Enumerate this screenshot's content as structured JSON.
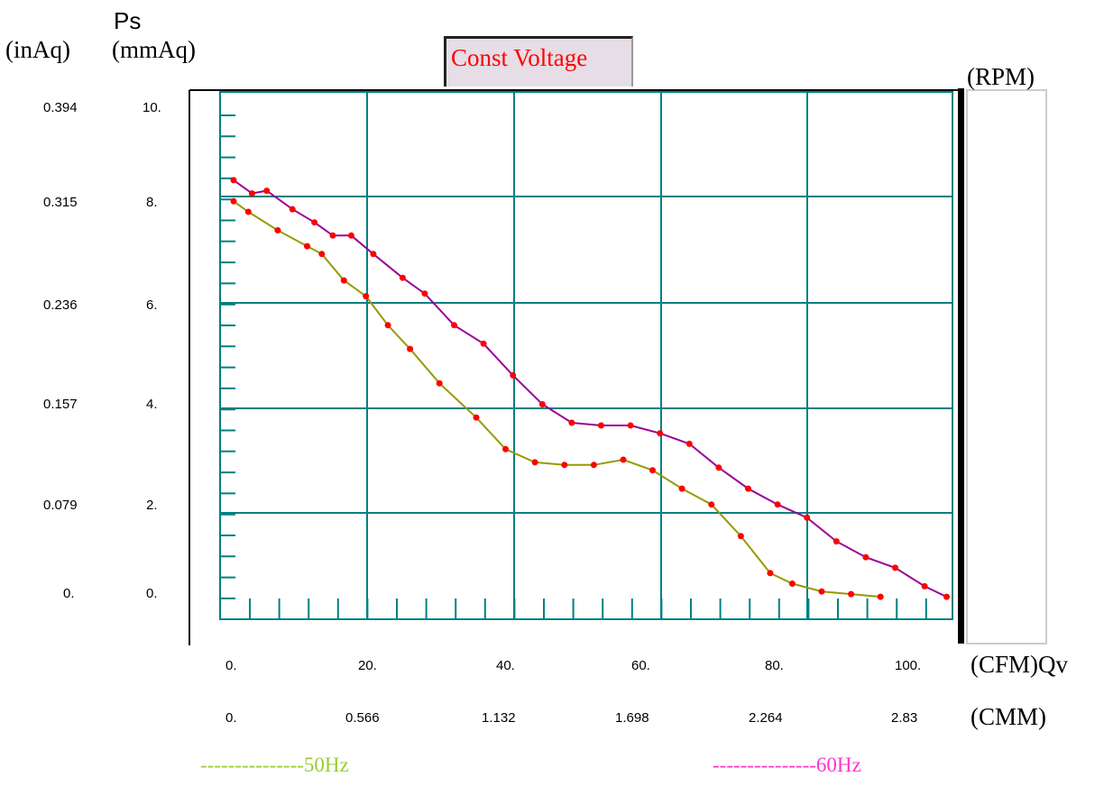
{
  "labels": {
    "ps": "Ps",
    "inaq": "(inAq)",
    "mmaq": "(mmAq)",
    "rpm": "(RPM)",
    "cfm": "(CFM)Qv",
    "cmm": "(CMM)",
    "mode": "Const Voltage",
    "legend_50": "---------------50Hz",
    "legend_60": "---------------60Hz"
  },
  "colors": {
    "grid": "#008080",
    "series_50": "#999900",
    "series_60": "#990099",
    "marker": "#ff0000",
    "legend_50": "#99cc33",
    "legend_60": "#ff33cc"
  },
  "chart_data": {
    "type": "line",
    "x_unit": "CFM",
    "y_unit": "mmAq",
    "xlim": [
      0,
      100
    ],
    "ylim": [
      0,
      10
    ],
    "grid": true,
    "x_ticks_cfm": [
      "0.",
      "20.",
      "40.",
      "60.",
      "80.",
      "100."
    ],
    "x_ticks_cmm": [
      "0.",
      "0.566",
      "1.132",
      "1.698",
      "2.264",
      "2.83"
    ],
    "y_ticks_mmaq": [
      "10.",
      "8.",
      "6.",
      "4.",
      "2.",
      "0."
    ],
    "y_ticks_inaq": [
      "0.394",
      "0.315",
      "0.236",
      "0.157",
      "0.079",
      "0."
    ],
    "series": [
      {
        "name": "50Hz",
        "x": [
          0,
          2,
          6,
          10,
          12,
          15,
          18,
          21,
          24,
          28,
          33,
          37,
          41,
          45,
          49,
          53,
          57,
          61,
          65,
          69,
          73,
          76,
          80,
          84,
          88
        ],
        "y": [
          7.55,
          7.35,
          7.0,
          6.7,
          6.55,
          6.05,
          5.75,
          5.2,
          4.75,
          4.1,
          3.45,
          2.85,
          2.6,
          2.55,
          2.55,
          2.65,
          2.45,
          2.1,
          1.8,
          1.2,
          0.5,
          0.3,
          0.15,
          0.1,
          0.05
        ]
      },
      {
        "name": "60Hz",
        "x": [
          0,
          2.5,
          4.5,
          8,
          11,
          13.5,
          16,
          19,
          23,
          26,
          30,
          34,
          38,
          42,
          46,
          50,
          54,
          58,
          62,
          66,
          70,
          74,
          78,
          82,
          86,
          90,
          94,
          97
        ],
        "y": [
          7.95,
          7.7,
          7.75,
          7.4,
          7.15,
          6.9,
          6.9,
          6.55,
          6.1,
          5.8,
          5.2,
          4.85,
          4.25,
          3.7,
          3.35,
          3.3,
          3.3,
          3.15,
          2.95,
          2.5,
          2.1,
          1.8,
          1.55,
          1.1,
          0.8,
          0.6,
          0.25,
          0.05
        ]
      }
    ]
  }
}
